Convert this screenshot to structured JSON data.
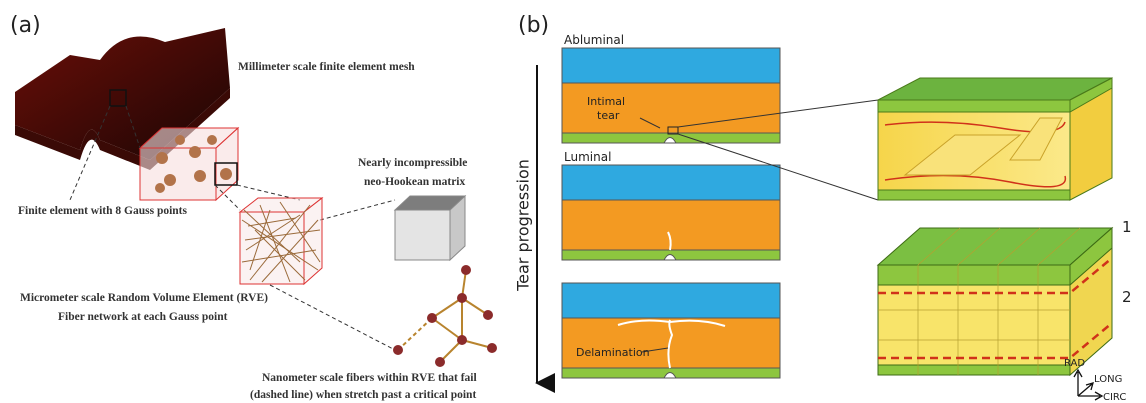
{
  "panel_a": {
    "label": "(a)",
    "mesh_label": "Millimeter scale finite element mesh",
    "element_label": "Finite element with 8 Gauss points",
    "matrix_label": [
      "Nearly incompressible",
      "neo-Hookean matrix"
    ],
    "rve_label": [
      "Micrometer scale Random Volume Element (RVE)",
      "Fiber network at each Gauss point"
    ],
    "fiber_label": [
      "Nanometer scale fibers within RVE that fail",
      "(dashed line) when stretch past a critical point"
    ]
  },
  "panel_b": {
    "label": "(b)",
    "abluminal": "Abluminal",
    "luminal": "Luminal",
    "intimal_tear": [
      "Intimal",
      "tear"
    ],
    "progression": "Tear progression",
    "delamination": "Delamination",
    "layer_labels": [
      "1",
      "2"
    ],
    "axes": [
      "RAD",
      "LONG",
      "CIRC"
    ]
  }
}
